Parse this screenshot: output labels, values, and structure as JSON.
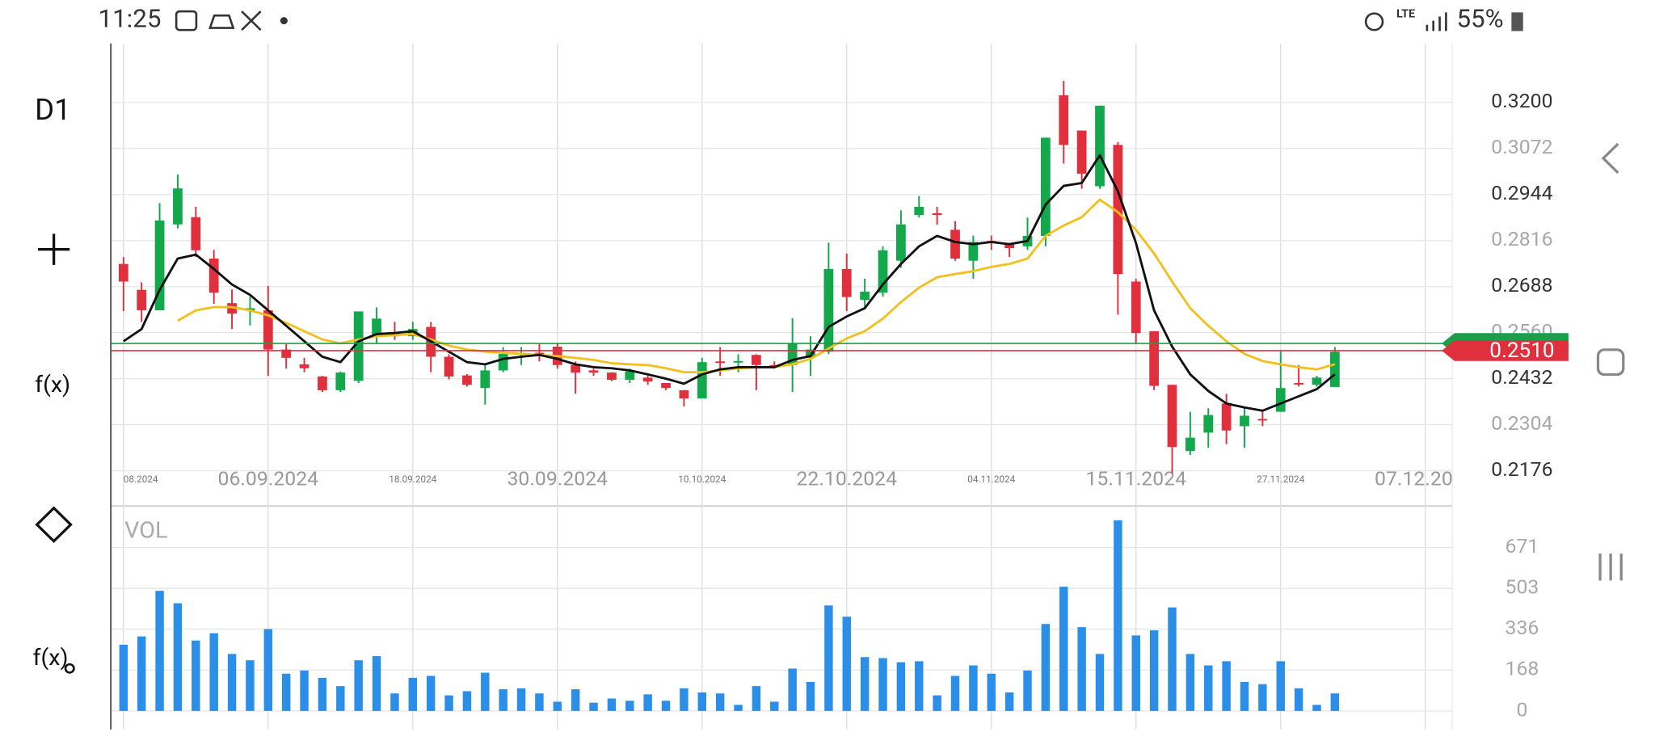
{
  "status_bar": {
    "time": "11:25",
    "network": "LTE",
    "battery": "55%"
  },
  "toolbar": {
    "timeframe": "D1",
    "indicator": "f(x)",
    "sub_indicator": "f(x)"
  },
  "chart_data": [
    {
      "type": "candlestick",
      "categories": [
        "08.2024",
        null,
        null,
        null,
        null,
        null,
        null,
        null,
        "06.09.2024",
        null,
        null,
        null,
        null,
        null,
        null,
        null,
        "18.09.2024",
        null,
        null,
        null,
        null,
        null,
        null,
        null,
        "30.09.2024",
        null,
        null,
        null,
        null,
        null,
        null,
        null,
        "10.10.2024",
        null,
        null,
        null,
        null,
        null,
        null,
        null,
        "22.10.2024",
        null,
        null,
        null,
        null,
        null,
        null,
        null,
        "04.11.2024",
        null,
        null,
        null,
        null,
        null,
        null,
        null,
        "15.11.2024",
        null,
        null,
        null,
        null,
        null,
        null,
        null,
        "27.11.2024",
        null,
        null,
        null
      ],
      "axis_end_label": "07.12.20",
      "open": [
        0.2751,
        0.2679,
        0.2622,
        0.2861,
        0.2881,
        0.2766,
        0.2642,
        0.2622,
        0.2622,
        0.2513,
        0.2472,
        0.2438,
        0.24,
        0.2426,
        0.255,
        0.2559,
        0.255,
        0.2576,
        0.2493,
        0.2441,
        0.2406,
        0.2455,
        0.2501,
        0.2504,
        0.2521,
        0.247,
        0.2455,
        0.2449,
        0.2429,
        0.2435,
        0.242,
        0.24,
        0.2377,
        0.248,
        0.2478,
        0.2498,
        0.247,
        0.247,
        0.249,
        0.2507,
        0.2737,
        0.2651,
        0.2671,
        0.276,
        0.2887,
        0.2892,
        0.2846,
        0.276,
        0.2815,
        0.2806,
        0.28,
        0.2829,
        0.322,
        0.3122,
        0.2967,
        0.3082,
        0.2702,
        0.2564,
        0.2415,
        0.2231,
        0.2282,
        0.2363,
        0.23,
        0.232,
        0.234,
        0.242,
        0.2415,
        0.2409
      ],
      "high": [
        0.277,
        0.27,
        0.292,
        0.3,
        0.291,
        0.279,
        0.268,
        0.266,
        0.269,
        0.253,
        0.249,
        0.244,
        0.2452,
        0.2619,
        0.263,
        0.259,
        0.259,
        0.259,
        0.25,
        0.2445,
        0.247,
        0.252,
        0.252,
        0.253,
        0.253,
        0.248,
        0.246,
        0.245,
        0.246,
        0.244,
        0.242,
        0.24,
        0.249,
        0.252,
        0.25,
        0.25,
        0.248,
        0.26,
        0.255,
        0.281,
        0.278,
        0.271,
        0.28,
        0.29,
        0.294,
        0.291,
        0.287,
        0.283,
        0.283,
        0.281,
        0.288,
        0.3102,
        0.326,
        0.3122,
        0.3191,
        0.309,
        0.271,
        0.2564,
        0.2415,
        0.234,
        0.235,
        0.239,
        0.235,
        0.234,
        0.251,
        0.247,
        0.244,
        0.252
      ],
      "low": [
        0.262,
        0.259,
        0.2622,
        0.285,
        0.277,
        0.264,
        0.257,
        0.258,
        0.244,
        0.246,
        0.245,
        0.2395,
        0.2395,
        0.242,
        0.253,
        0.254,
        0.254,
        0.245,
        0.243,
        0.241,
        0.236,
        0.245,
        0.247,
        0.248,
        0.246,
        0.239,
        0.244,
        0.2425,
        0.242,
        0.2415,
        0.24,
        0.2355,
        0.2377,
        0.244,
        0.245,
        0.24,
        0.246,
        0.2395,
        0.244,
        0.25,
        0.262,
        0.263,
        0.266,
        0.274,
        0.288,
        0.286,
        0.276,
        0.271,
        0.279,
        0.277,
        0.279,
        0.28,
        0.303,
        0.296,
        0.296,
        0.261,
        0.253,
        0.24,
        0.217,
        0.222,
        0.224,
        0.225,
        0.224,
        0.23,
        0.234,
        0.241,
        0.241,
        0.2409
      ],
      "close": [
        0.2702,
        0.2622,
        0.2872,
        0.2961,
        0.2789,
        0.2671,
        0.2613,
        0.2628,
        0.2513,
        0.249,
        0.2461,
        0.24,
        0.2449,
        0.2619,
        0.2599,
        0.255,
        0.257,
        0.2493,
        0.2438,
        0.2415,
        0.2455,
        0.2501,
        0.2504,
        0.2498,
        0.247,
        0.2449,
        0.2449,
        0.2429,
        0.2452,
        0.2424,
        0.2406,
        0.2377,
        0.2478,
        0.2478,
        0.2481,
        0.247,
        0.2468,
        0.253,
        0.2513,
        0.2737,
        0.2659,
        0.2674,
        0.2789,
        0.2861,
        0.291,
        0.2887,
        0.2766,
        0.2812,
        0.281,
        0.2795,
        0.2829,
        0.3102,
        0.3082,
        0.3002,
        0.3191,
        0.2723,
        0.2559,
        0.2412,
        0.2242,
        0.2268,
        0.2331,
        0.2288,
        0.2329,
        0.2316,
        0.2406,
        0.2418,
        0.2435,
        0.2507
      ],
      "up_color": "#12a84b",
      "down_color": "#e0303e",
      "lines": [
        {
          "color": "#f2c01c",
          "values": [
            null,
            null,
            null,
            0.2593,
            0.2622,
            0.2631,
            0.2631,
            0.2622,
            0.2608,
            0.2587,
            0.2564,
            0.2541,
            0.253,
            0.2541,
            0.255,
            0.2553,
            0.2556,
            0.2541,
            0.2524,
            0.2513,
            0.2507,
            0.2504,
            0.2501,
            0.2498,
            0.2495,
            0.249,
            0.2484,
            0.2475,
            0.2472,
            0.247,
            0.2461,
            0.245,
            0.245,
            0.2455,
            0.2461,
            0.2464,
            0.2464,
            0.2472,
            0.2487,
            0.2516,
            0.2544,
            0.2564,
            0.2599,
            0.2645,
            0.2685,
            0.2714,
            0.2723,
            0.2731,
            0.2743,
            0.2751,
            0.2766,
            0.2829,
            0.2858,
            0.2881,
            0.293,
            0.2895,
            0.2846,
            0.278,
            0.2702,
            0.2628,
            0.2579,
            0.2536,
            0.2501,
            0.2481,
            0.2472,
            0.2464,
            0.2458,
            0.2472
          ]
        },
        {
          "color": "#111111",
          "values": [
            0.2536,
            0.257,
            0.2679,
            0.2766,
            0.2777,
            0.2737,
            0.2694,
            0.2665,
            0.2622,
            0.2579,
            0.2536,
            0.2493,
            0.2478,
            0.2536,
            0.2556,
            0.2559,
            0.2564,
            0.2536,
            0.2507,
            0.2478,
            0.2472,
            0.2487,
            0.2493,
            0.2498,
            0.2487,
            0.2472,
            0.2464,
            0.2461,
            0.2455,
            0.2444,
            0.2432,
            0.2418,
            0.2444,
            0.2458,
            0.2464,
            0.2464,
            0.2464,
            0.2484,
            0.2495,
            0.2576,
            0.2605,
            0.2628,
            0.2694,
            0.2751,
            0.28,
            0.2829,
            0.2812,
            0.2806,
            0.2812,
            0.2806,
            0.2815,
            0.2916,
            0.2968,
            0.2976,
            0.3053,
            0.2953,
            0.2809,
            0.2622,
            0.2521,
            0.2444,
            0.2398,
            0.2363,
            0.2352,
            0.2343,
            0.2363,
            0.2383,
            0.2403,
            0.2444
          ]
        }
      ],
      "price_lines": [
        {
          "color": "#1e9e4a",
          "value": 0.253
        },
        {
          "color": "#e0303e",
          "value": {
            "value": 0.251,
            "label": "0.2510"
          }
        }
      ],
      "ylim": [
        0.2081,
        0.3364
      ],
      "yticks": [
        {
          "value": 0.32,
          "label": "0.3200"
        },
        {
          "value": 0.3072,
          "label": "0.3072"
        },
        {
          "value": 0.2944,
          "label": "0.2944"
        },
        {
          "value": 0.2816,
          "label": "0.2816"
        },
        {
          "value": 0.2688,
          "label": "0.2688"
        },
        {
          "value": 0.256,
          "label": "0.2560"
        },
        {
          "value": 0.2432,
          "label": "0.2432"
        },
        {
          "value": 0.2304,
          "label": "0.2304"
        },
        {
          "value": 0.2176,
          "label": "0.2176"
        }
      ],
      "grid": true
    },
    {
      "type": "bar",
      "title": "VOL",
      "color": "#2b8fe9",
      "values": [
        272,
        306,
        493,
        442,
        289,
        319,
        234,
        208,
        336,
        153,
        166,
        136,
        102,
        208,
        225,
        72,
        136,
        144,
        64,
        81,
        157,
        89,
        93,
        72,
        38,
        89,
        34,
        51,
        42,
        68,
        42,
        93,
        76,
        72,
        25,
        102,
        38,
        174,
        119,
        433,
        387,
        221,
        217,
        200,
        204,
        64,
        144,
        187,
        153,
        76,
        166,
        357,
        510,
        344,
        234,
        782,
        310,
        331,
        425,
        234,
        187,
        204,
        119,
        110,
        204,
        93,
        25,
        72
      ],
      "ylim": [
        -76,
        837
      ],
      "yticks": [
        0,
        168,
        336,
        503,
        671
      ],
      "grid": true
    }
  ]
}
